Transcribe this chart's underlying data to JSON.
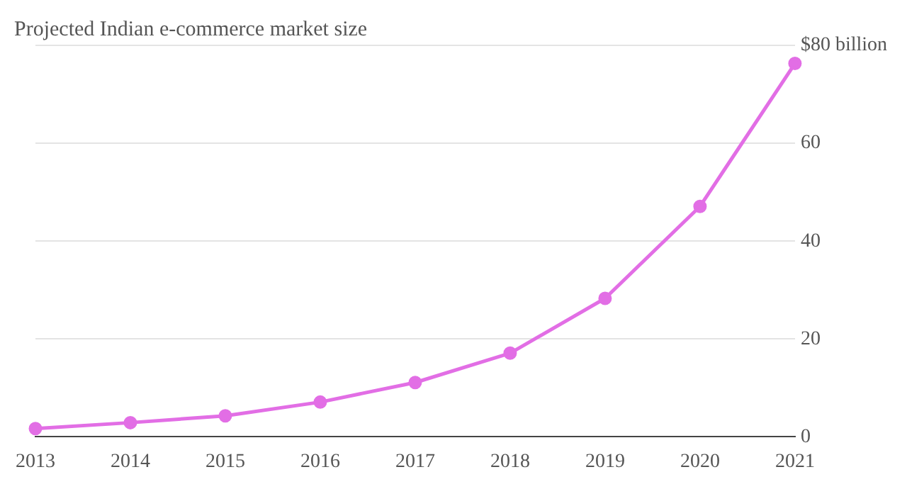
{
  "chart_data": {
    "type": "line",
    "title": "Projected Indian e-commerce market size",
    "categories": [
      "2013",
      "2014",
      "2015",
      "2016",
      "2017",
      "2018",
      "2019",
      "2020",
      "2021"
    ],
    "series": [
      {
        "color": "#e26ee5",
        "values": [
          1.7,
          2.9,
          4.3,
          7.1,
          11.1,
          17.1,
          28.3,
          47.1,
          76.3
        ]
      }
    ],
    "ylim": [
      0,
      80
    ],
    "yticks": [
      0,
      20,
      40,
      60,
      {
        "value": 80,
        "label": "$80 billion"
      }
    ],
    "grid": "y",
    "legend": false,
    "marker": "circle",
    "line_style": "solid"
  }
}
